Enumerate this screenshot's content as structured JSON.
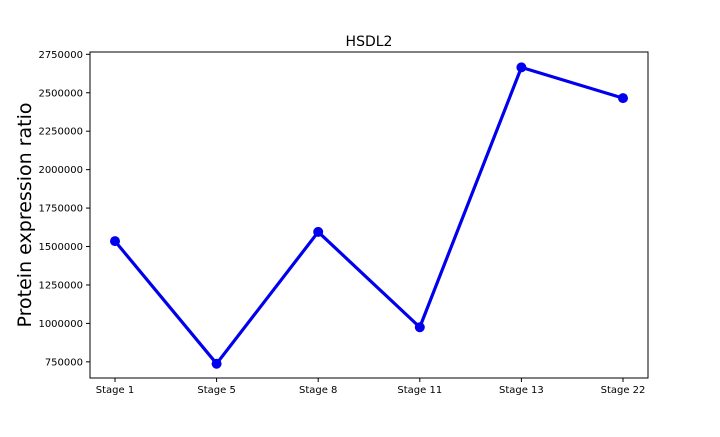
{
  "chart_data": {
    "type": "line",
    "title": "HSDL2",
    "xlabel": "",
    "ylabel": "Protein expression ratio",
    "categories": [
      "Stage 1",
      "Stage 5",
      "Stage 8",
      "Stage 11",
      "Stage 13",
      "Stage 22"
    ],
    "series": [
      {
        "values": [
          1535000,
          738000,
          1595000,
          975000,
          2665000,
          2465000
        ],
        "color": "#0000ee"
      }
    ],
    "ylim": [
      645000,
      2765000
    ],
    "yticks": [
      750000,
      1000000,
      1250000,
      1500000,
      1750000,
      2000000,
      2250000,
      2500000,
      2750000
    ],
    "ytick_labels": [
      "750000",
      "1000000",
      "1250000",
      "1500000",
      "1750000",
      "2000000",
      "2250000",
      "2500000",
      "2750000"
    ],
    "grid": false,
    "legend": "none"
  }
}
